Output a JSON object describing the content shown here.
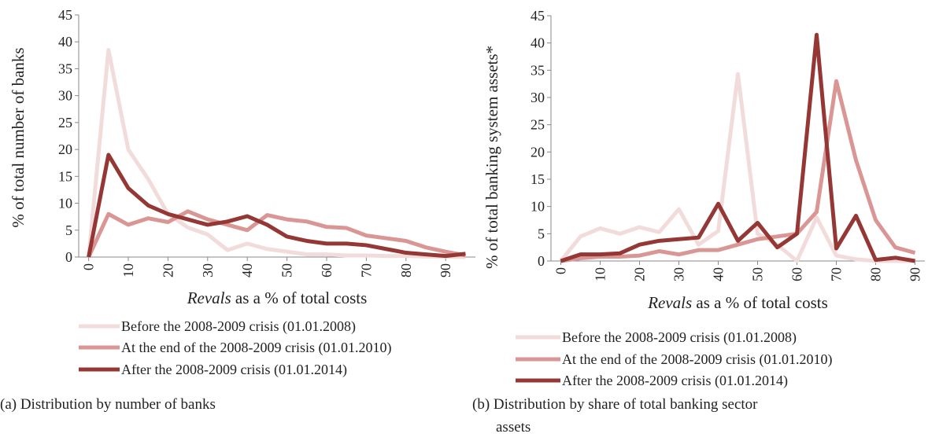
{
  "chart_data": [
    {
      "type": "line",
      "caption": "(a) Distribution by number of banks",
      "ylabel": "% of total number of banks",
      "xlabel": {
        "emphasis": "Revals",
        "rest": "as a % of total costs"
      },
      "x": [
        0,
        5,
        10,
        15,
        20,
        25,
        30,
        35,
        40,
        45,
        50,
        55,
        60,
        65,
        70,
        75,
        80,
        85,
        90,
        95
      ],
      "xlim": [
        -2.5,
        97.5
      ],
      "xticks": [
        0,
        10,
        20,
        30,
        40,
        50,
        60,
        70,
        80,
        90
      ],
      "ylim": [
        0,
        45
      ],
      "yticks": [
        0,
        5,
        10,
        15,
        20,
        25,
        30,
        35,
        40,
        45
      ],
      "series": [
        {
          "name": "Before the 2008-2009 crisis (01.01.2008)",
          "color": "#f2dcdb",
          "values": [
            0,
            38.5,
            20,
            14.5,
            8,
            5.5,
            4.2,
            1.3,
            2.5,
            1.5,
            1,
            0.5,
            0.5,
            0.3,
            0.3,
            0.2,
            0.2,
            0.1,
            0.1,
            0
          ]
        },
        {
          "name": "At the end of the 2008-2009 crisis (01.01.2010)",
          "color": "#d99694",
          "values": [
            0,
            8,
            6,
            7.2,
            6.5,
            8.5,
            7,
            6,
            5,
            7.8,
            7,
            6.6,
            5.6,
            5.4,
            4,
            3.5,
            3,
            1.8,
            1,
            0.3
          ]
        },
        {
          "name": "After the 2008-2009 crisis (01.01.2014)",
          "color": "#953735",
          "values": [
            0,
            19,
            12.8,
            9.6,
            8,
            7,
            6,
            6.6,
            7.6,
            6,
            3.8,
            3,
            2.5,
            2.5,
            2.2,
            1.5,
            0.8,
            0.5,
            0.2,
            0.6
          ]
        }
      ]
    },
    {
      "type": "line",
      "caption": "(b) Distribution by share of total banking sector assets",
      "ylabel": "% of total banking system assets*",
      "xlabel": {
        "emphasis": "Revals",
        "rest": "as a % of total costs"
      },
      "x": [
        0,
        5,
        10,
        15,
        20,
        25,
        30,
        35,
        40,
        45,
        50,
        55,
        60,
        65,
        70,
        75,
        80,
        85,
        90
      ],
      "xlim": [
        -2.5,
        92.5
      ],
      "xticks": [
        0,
        10,
        20,
        30,
        40,
        50,
        60,
        70,
        80,
        90
      ],
      "ylim": [
        0,
        45
      ],
      "yticks": [
        0,
        5,
        10,
        15,
        20,
        25,
        30,
        35,
        40,
        45
      ],
      "series": [
        {
          "name": "Before the 2008-2009 crisis (01.01.2008)",
          "color": "#f2dcdb",
          "values": [
            0,
            4.5,
            6,
            5,
            6.2,
            5.3,
            9.5,
            3,
            5.5,
            34.3,
            5,
            3,
            0,
            8,
            1,
            0.3,
            0,
            0,
            0
          ]
        },
        {
          "name": "At the end of the 2008-2009 crisis (01.01.2010)",
          "color": "#d99694",
          "values": [
            0,
            0.5,
            0.8,
            0.8,
            1,
            1.8,
            1.2,
            2,
            2,
            3,
            4,
            4.5,
            5,
            9,
            33,
            18.5,
            7.5,
            2.5,
            1.5
          ]
        },
        {
          "name": "After the 2008-2009 crisis (01.01.2014)",
          "color": "#953735",
          "values": [
            0,
            1.2,
            1.2,
            1.4,
            3,
            3.7,
            4,
            4.3,
            10.5,
            3.7,
            7,
            2.5,
            5,
            41.5,
            2.3,
            8.3,
            0.2,
            0.6,
            0
          ]
        }
      ]
    }
  ]
}
